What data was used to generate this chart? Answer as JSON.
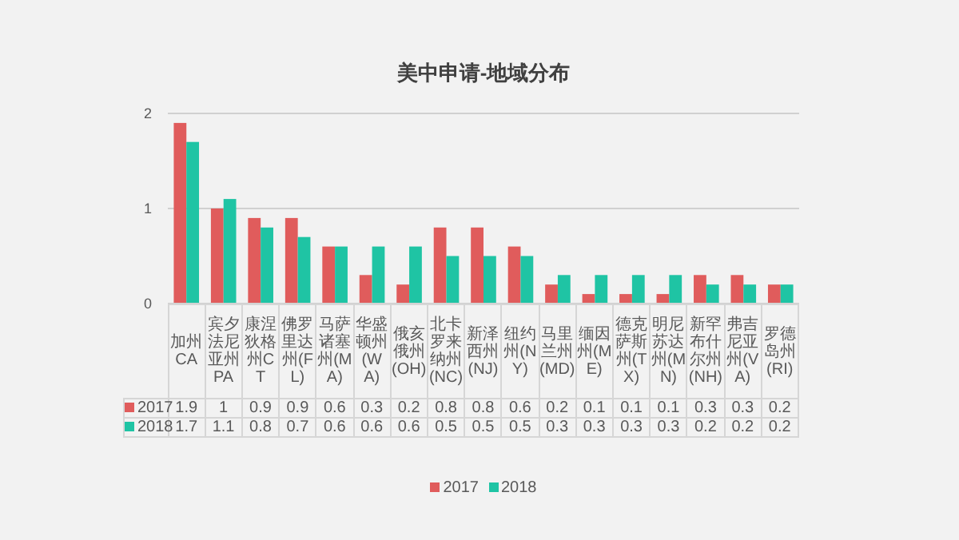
{
  "chart_data": {
    "type": "bar",
    "title": "美中申请-地域分布",
    "categories": [
      "加州CA",
      "宾夕法尼亚州PA",
      "康涅狄格州CT",
      "佛罗里达州(FL)",
      "马萨诸塞州(MA)",
      "华盛顿州(WA)",
      "俄亥俄州(OH)",
      "北卡罗来纳州(NC)",
      "新泽西州(NJ)",
      "纽约州(NY)",
      "马里兰州(MD)",
      "缅因州(ME)",
      "德克萨斯州(TX)",
      "明尼苏达州(MN)",
      "新罕布什尔州(NH)",
      "弗吉尼亚州(VA)",
      "罗德岛州(RI)"
    ],
    "series": [
      {
        "name": "2017",
        "color": "#e05c5c",
        "values": [
          1.9,
          1,
          0.9,
          0.9,
          0.6,
          0.3,
          0.2,
          0.8,
          0.8,
          0.6,
          0.2,
          0.1,
          0.1,
          0.1,
          0.3,
          0.3,
          0.2
        ]
      },
      {
        "name": "2018",
        "color": "#1fc4a4",
        "values": [
          1.7,
          1.1,
          0.8,
          0.7,
          0.6,
          0.6,
          0.6,
          0.5,
          0.5,
          0.5,
          0.3,
          0.3,
          0.3,
          0.3,
          0.2,
          0.2,
          0.2
        ]
      }
    ],
    "ylim": [
      0,
      2
    ],
    "yticks": [
      0,
      1,
      2
    ],
    "grid": "y",
    "data_labels": true,
    "legend": "bottom"
  }
}
